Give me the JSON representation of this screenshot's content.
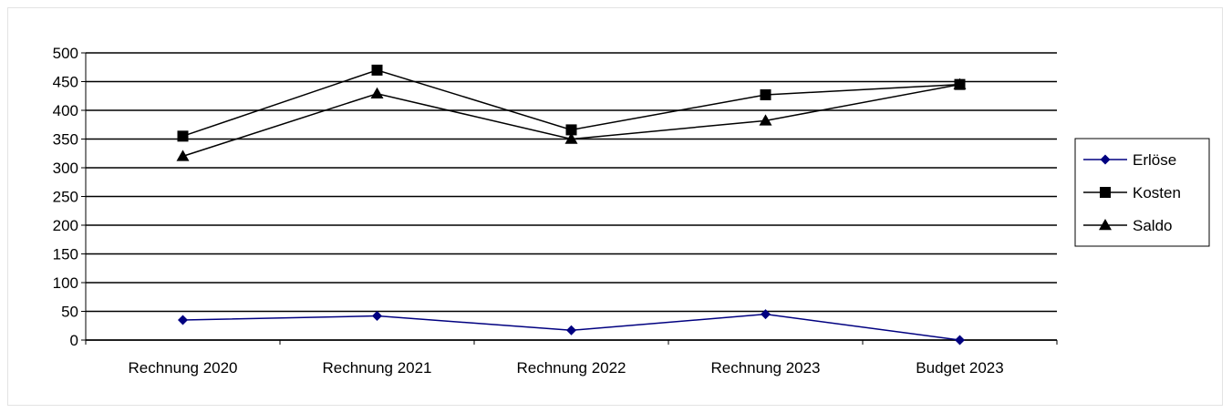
{
  "chart_data": {
    "type": "line",
    "title": "",
    "xlabel": "",
    "ylabel": "",
    "categories": [
      "Rechnung 2020",
      "Rechnung 2021",
      "Rechnung 2022",
      "Rechnung 2023",
      "Budget 2023"
    ],
    "ylim": [
      0,
      500
    ],
    "yticks": [
      0,
      50,
      100,
      150,
      200,
      250,
      300,
      350,
      400,
      450,
      500
    ],
    "grid": "horizontal",
    "legend_position": "right",
    "series": [
      {
        "name": "Erlöse",
        "marker": "diamond",
        "color": "#000080",
        "values": [
          35,
          42,
          17,
          45,
          0
        ]
      },
      {
        "name": "Kosten",
        "marker": "square",
        "color": "#000000",
        "values": [
          355,
          470,
          366,
          427,
          445
        ]
      },
      {
        "name": "Saldo",
        "marker": "triangle",
        "color": "#000000",
        "values": [
          320,
          429,
          350,
          382,
          445
        ]
      }
    ]
  }
}
